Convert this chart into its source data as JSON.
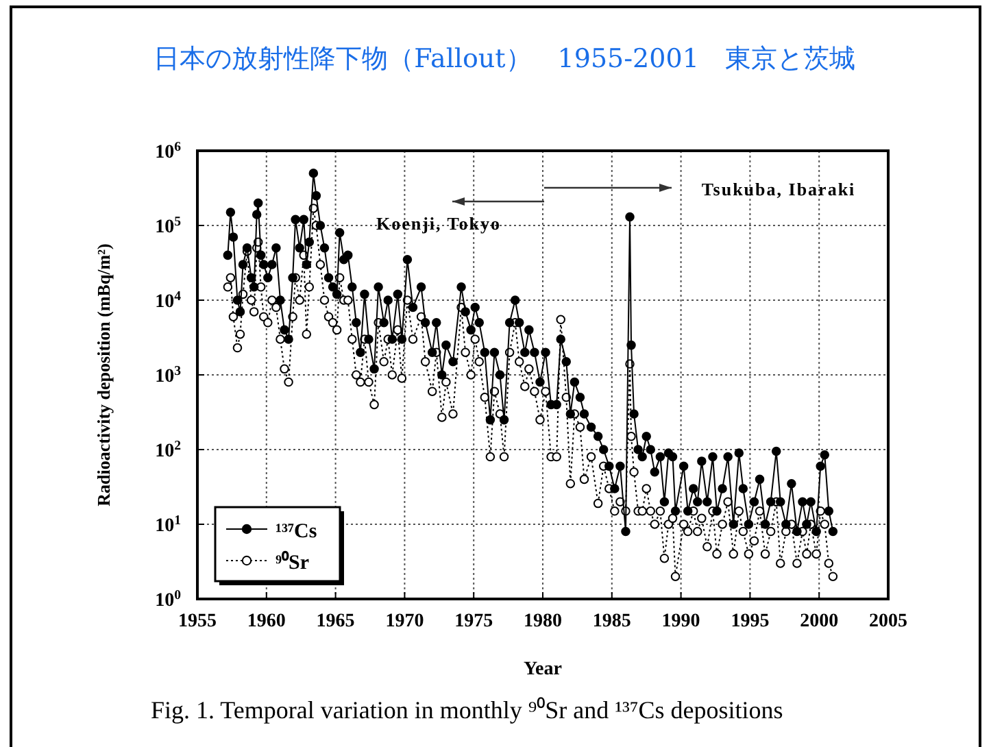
{
  "chart_data": {
    "type": "line",
    "title": "日本の放射性降下物（Fallout）　1955-2001　東京と茨城",
    "xlabel": "Year",
    "ylabel": "Radioactivity deposition (mBq/m²)",
    "annotations": [
      "Koenji, Tokyo",
      "Tsukuba, Ibaraki",
      "Fig. 1.   Temporal variation in monthly ⁹⁰Sr and ¹³⁷Cs depositions"
    ],
    "x": [
      1957.2,
      1957.4,
      1957.6,
      1957.9,
      1958.1,
      1958.3,
      1958.6,
      1958.9,
      1959.1,
      1959.3,
      1959.4,
      1959.6,
      1959.8,
      1960.1,
      1960.4,
      1960.7,
      1961.0,
      1961.3,
      1961.6,
      1961.9,
      1962.1,
      1962.4,
      1962.7,
      1962.9,
      1963.1,
      1963.4,
      1963.6,
      1963.9,
      1964.2,
      1964.5,
      1964.8,
      1965.1,
      1965.3,
      1965.6,
      1965.9,
      1966.2,
      1966.5,
      1966.8,
      1967.1,
      1967.4,
      1967.8,
      1968.1,
      1968.5,
      1968.8,
      1969.1,
      1969.5,
      1969.8,
      1970.2,
      1970.6,
      1971.2,
      1971.5,
      1972.0,
      1972.3,
      1972.7,
      1973.0,
      1973.5,
      1974.1,
      1974.4,
      1974.8,
      1975.1,
      1975.4,
      1975.8,
      1976.2,
      1976.5,
      1976.9,
      1977.2,
      1977.6,
      1978.0,
      1978.3,
      1978.7,
      1979.0,
      1979.4,
      1979.8,
      1980.2,
      1980.6,
      1981.0,
      1981.3,
      1981.7,
      1982.0,
      1982.3,
      1982.7,
      1983.0,
      1983.5,
      1984.0,
      1984.4,
      1984.8,
      1985.2,
      1985.6,
      1986.0,
      1986.3,
      1986.4,
      1986.6,
      1986.9,
      1987.2,
      1987.5,
      1987.8,
      1988.1,
      1988.5,
      1988.8,
      1989.1,
      1989.4,
      1989.6,
      1990.2,
      1990.5,
      1990.9,
      1991.2,
      1991.5,
      1991.9,
      1992.3,
      1992.6,
      1993.0,
      1993.4,
      1993.8,
      1994.2,
      1994.5,
      1994.9,
      1995.3,
      1995.7,
      1996.1,
      1996.5,
      1996.9,
      1997.2,
      1997.6,
      1998.0,
      1998.4,
      1998.8,
      1999.1,
      1999.4,
      1999.8,
      2000.1,
      2000.4,
      2000.7,
      2001.0
    ],
    "series": [
      {
        "name": "¹³⁷Cs",
        "color": "#000000",
        "marker": "circle",
        "line_style": "solid",
        "values": [
          40000,
          150000,
          70000,
          10000,
          7000,
          30000,
          50000,
          20000,
          15000,
          140000,
          200000,
          40000,
          30000,
          20000,
          30000,
          50000,
          10000,
          4000,
          3000,
          20000,
          120000,
          50000,
          120000,
          30000,
          60000,
          500000,
          250000,
          100000,
          50000,
          20000,
          15000,
          12000,
          80000,
          35000,
          40000,
          15000,
          5000,
          2000,
          12000,
          3000,
          1200,
          15000,
          5000,
          10000,
          3000,
          12000,
          3000,
          35000,
          8000,
          15000,
          5000,
          2000,
          5000,
          1000,
          2500,
          1500,
          15000,
          7000,
          4000,
          8000,
          5000,
          2000,
          250,
          2000,
          1000,
          250,
          5000,
          10000,
          5000,
          2000,
          4000,
          2000,
          800,
          2000,
          400,
          400,
          3000,
          1500,
          300,
          800,
          500,
          300,
          200,
          150,
          100,
          60,
          30,
          60,
          8,
          130000,
          2500,
          300,
          100,
          80,
          150,
          100,
          50,
          80,
          20,
          90,
          80,
          15,
          60,
          15,
          30,
          20,
          70,
          20,
          80,
          15,
          30,
          80,
          10,
          90,
          30,
          10,
          20,
          40,
          10,
          20,
          95,
          20,
          10,
          35,
          8,
          20,
          10,
          20,
          8,
          60,
          85,
          15,
          8
        ]
      },
      {
        "name": "⁹⁰Sr",
        "color": "#000000",
        "marker": "circle",
        "line_style": "dotted",
        "values": [
          15000,
          20000,
          6000,
          2300,
          3500,
          12000,
          45000,
          10000,
          7000,
          50000,
          60000,
          15000,
          6000,
          5000,
          10000,
          8000,
          3000,
          1200,
          800,
          6000,
          20000,
          10000,
          40000,
          3500,
          15000,
          170000,
          100000,
          30000,
          10000,
          6000,
          5000,
          4000,
          20000,
          10000,
          10000,
          3000,
          1000,
          800,
          3000,
          800,
          400,
          5000,
          1500,
          3000,
          1000,
          4000,
          900,
          10000,
          3000,
          6000,
          1500,
          600,
          2000,
          270,
          800,
          300,
          8000,
          2000,
          1000,
          3000,
          1500,
          500,
          80,
          600,
          300,
          80,
          2000,
          5000,
          1500,
          700,
          1200,
          600,
          250,
          600,
          80,
          80,
          5500,
          500,
          35,
          300,
          200,
          40,
          80,
          19,
          60,
          30,
          15,
          20,
          15,
          1400,
          150,
          50,
          15,
          15,
          30,
          15,
          10,
          15,
          3.5,
          10,
          12,
          2,
          10,
          8,
          15,
          8,
          12,
          5,
          15,
          4,
          10,
          20,
          4,
          15,
          8,
          4,
          6,
          15,
          4,
          8,
          20,
          3,
          8,
          10,
          3,
          8,
          4,
          10,
          4,
          15,
          10,
          3,
          2
        ]
      }
    ],
    "xlim": [
      1955,
      2005
    ],
    "xticks": [
      1955,
      1960,
      1965,
      1970,
      1975,
      1980,
      1985,
      1990,
      1995,
      2000,
      2005
    ],
    "ylim": [
      1,
      1000000
    ],
    "yticks": [
      {
        "value": 1,
        "label": "10$^{0}$"
      },
      {
        "value": 10,
        "label": "10$^{1}$"
      },
      {
        "value": 100,
        "label": "10$^{2}$"
      },
      {
        "value": 1000,
        "label": "10$^{3}$"
      },
      {
        "value": 10000,
        "label": "10$^{4}$"
      },
      {
        "value": 100000,
        "label": "10$^{5}$"
      },
      {
        "value": 1000000,
        "label": "10$^{6}$"
      }
    ],
    "log": "y",
    "grid": true,
    "legend": "bottom left"
  }
}
